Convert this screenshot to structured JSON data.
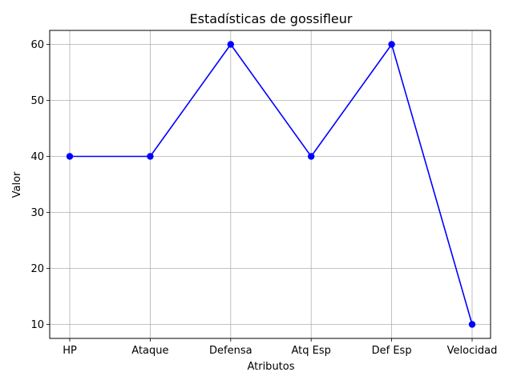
{
  "chart_data": {
    "type": "line",
    "title": "Estadísticas de gossifleur",
    "xlabel": "Atributos",
    "ylabel": "Valor",
    "categories": [
      "HP",
      "Ataque",
      "Defensa",
      "Atq Esp",
      "Def Esp",
      "Velocidad"
    ],
    "values": [
      40,
      40,
      60,
      40,
      60,
      10
    ],
    "ylim": [
      7.5,
      62.5
    ],
    "yticks": [
      10,
      20,
      30,
      40,
      50,
      60
    ],
    "grid": true,
    "line_color": "#0000ff",
    "marker": "circle"
  }
}
